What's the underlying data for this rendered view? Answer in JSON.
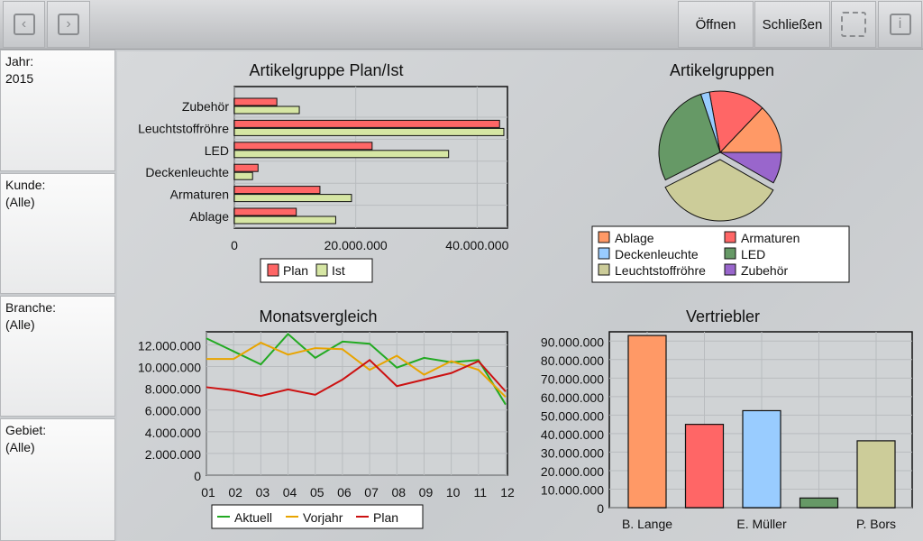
{
  "toolbar": {
    "back_icon": "chevron-left-icon",
    "forward_icon": "chevron-right-icon",
    "open_label": "Öffnen",
    "close_label": "Schließen",
    "rotate_icon": "rotate-icon",
    "info_icon": "info-icon"
  },
  "filters": [
    {
      "label": "Jahr:",
      "value": "2015"
    },
    {
      "label": "Kunde:",
      "value": "(Alle)"
    },
    {
      "label": "Branche:",
      "value": "(Alle)"
    },
    {
      "label": "Gebiet:",
      "value": "(Alle)"
    }
  ],
  "colors": {
    "plan": "#ff6666",
    "ist": "#d6e6a4",
    "Ablage": "#ff9966",
    "Armaturen": "#ff6666",
    "Deckenleuchte": "#99ccff",
    "LED": "#669966",
    "Leuchtstoffröhre": "#cccc99",
    "Zubehör": "#9966cc",
    "aktuell": "#22aa22",
    "vorjahr": "#e8a400",
    "plan_line": "#cc1111"
  },
  "chart_data": [
    {
      "type": "bar",
      "orientation": "horizontal",
      "title": "Artikelgruppe Plan/Ist",
      "categories": [
        "Zubehör",
        "Leuchtstoffröhre",
        "LED",
        "Deckenleuchte",
        "Armaturen",
        "Ablage"
      ],
      "series": [
        {
          "name": "Plan",
          "values": [
            7000000,
            43700000,
            22700000,
            3900000,
            14100000,
            10200000
          ]
        },
        {
          "name": "Ist",
          "values": [
            10700000,
            44400000,
            35300000,
            3000000,
            19300000,
            16700000
          ]
        }
      ],
      "xlim": [
        0,
        45000000
      ],
      "xticks": [
        "0",
        "20.000.000",
        "40.000.000"
      ],
      "grid": true,
      "legend": "bottom"
    },
    {
      "type": "pie",
      "title": "Artikelgruppen",
      "categories": [
        "Ablage",
        "Armaturen",
        "Deckenleuchte",
        "LED",
        "Leuchtstoffröhre",
        "Zubehör"
      ],
      "values": [
        16700000,
        19300000,
        3000000,
        35300000,
        44400000,
        10700000
      ],
      "exploded": "Leuchtstoffröhre",
      "legend": "bottom"
    },
    {
      "type": "line",
      "title": "Monatsvergleich",
      "categories": [
        "01",
        "02",
        "03",
        "04",
        "05",
        "06",
        "07",
        "08",
        "09",
        "10",
        "11",
        "12"
      ],
      "series": [
        {
          "name": "Aktuell",
          "values": [
            12600000,
            11400000,
            10200000,
            13000000,
            10800000,
            12300000,
            12100000,
            9900000,
            10800000,
            10400000,
            10600000,
            6500000
          ]
        },
        {
          "name": "Vorjahr",
          "values": [
            10700000,
            10700000,
            12200000,
            11100000,
            11700000,
            11600000,
            9700000,
            11000000,
            9250000,
            10500000,
            9700000,
            7200000
          ]
        },
        {
          "name": "Plan",
          "values": [
            8100000,
            7800000,
            7300000,
            7900000,
            7400000,
            8800000,
            10600000,
            8200000,
            8800000,
            9400000,
            10500000,
            7700000
          ]
        }
      ],
      "ylim": [
        0,
        13200000
      ],
      "yticks": [
        "0",
        "2.000.000",
        "4.000.000",
        "6.000.000",
        "8.000.000",
        "10.000.000",
        "12.000.000"
      ],
      "grid": true,
      "legend": "bottom"
    },
    {
      "type": "bar",
      "title": "Vertriebler",
      "categories": [
        "B. Lange",
        "",
        "E. Müller",
        "",
        "P. Bors"
      ],
      "values": [
        93000000,
        45000000,
        52400000,
        5200000,
        36100000
      ],
      "ylim": [
        0,
        95000000
      ],
      "yticks": [
        "0",
        "10.000.000",
        "20.000.000",
        "30.000.000",
        "40.000.000",
        "50.000.000",
        "60.000.000",
        "70.000.000",
        "80.000.000",
        "90.000.000"
      ],
      "grid": true
    }
  ]
}
